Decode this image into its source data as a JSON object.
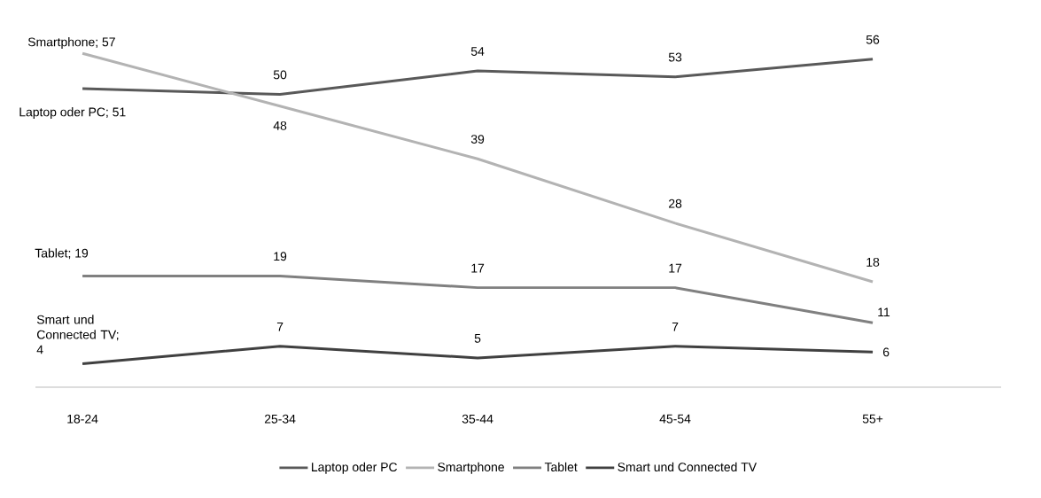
{
  "chart_data": {
    "type": "line",
    "categories": [
      "18-24",
      "25-34",
      "35-44",
      "45-54",
      "55+"
    ],
    "series": [
      {
        "name": "Laptop oder PC",
        "color": "#595959",
        "values": [
          51,
          50,
          54,
          53,
          56
        ],
        "value_labels": [
          "Laptop oder PC; 51",
          "50",
          "54",
          "53",
          "56"
        ]
      },
      {
        "name": "Smartphone",
        "color": "#b3b3b3",
        "values": [
          57,
          48,
          39,
          28,
          18
        ],
        "value_labels": [
          "Smartphone; 57",
          "48",
          "39",
          "28",
          "18"
        ]
      },
      {
        "name": "Tablet",
        "color": "#808080",
        "values": [
          19,
          19,
          17,
          17,
          11
        ],
        "value_labels": [
          "Tablet; 19",
          "19",
          "17",
          "17",
          "11"
        ]
      },
      {
        "name": "Smart und Connected TV",
        "color": "#404040",
        "values": [
          4,
          7,
          5,
          7,
          6
        ],
        "value_labels": [
          "Smart und Connected TV; 4",
          "7",
          "5",
          "7",
          "6"
        ]
      }
    ],
    "legend": "bottom",
    "marker": "none",
    "line_style": "solid",
    "grid": false
  }
}
